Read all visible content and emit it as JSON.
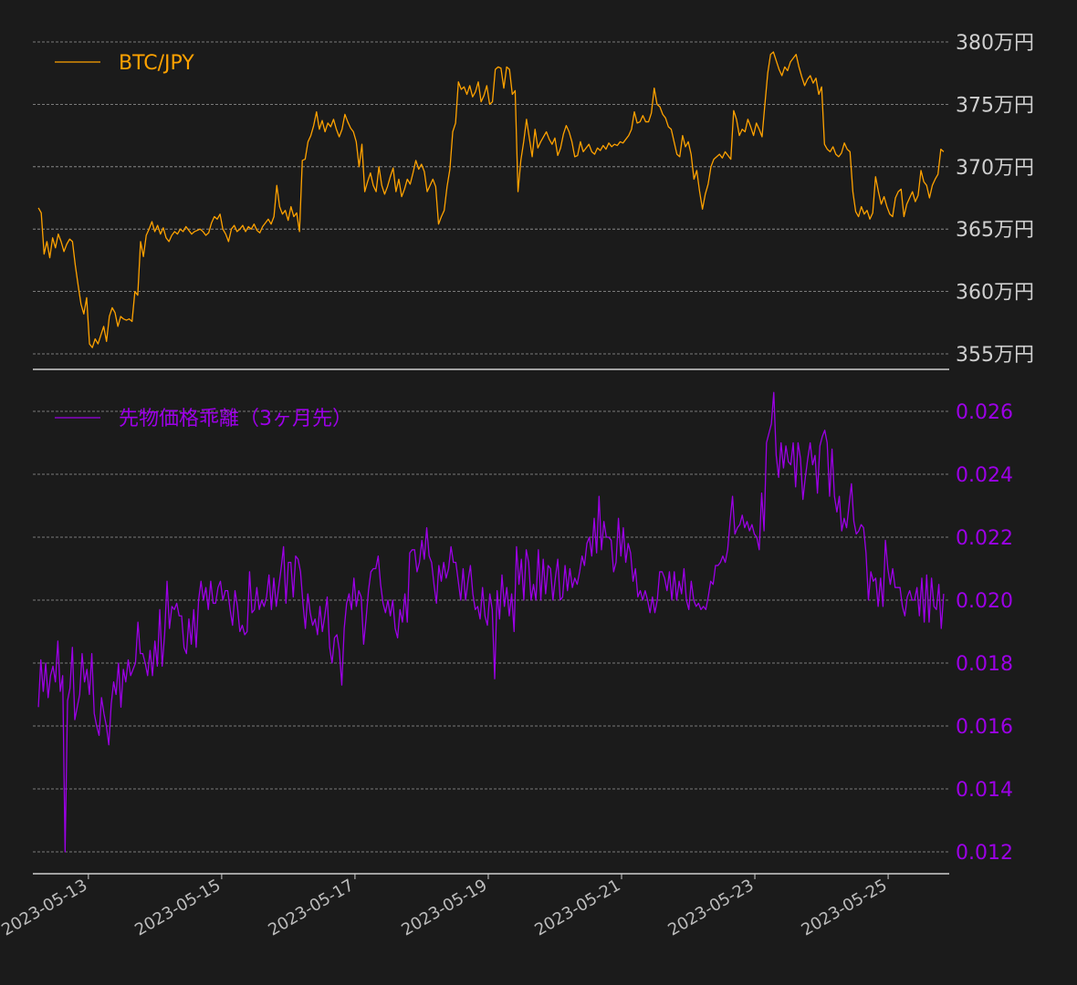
{
  "colors": {
    "background": "#1b1b1b",
    "grid": "#9a9a9a",
    "axis": "#cfcfcf",
    "btc": "#ffa200",
    "premium": "#9c00e6",
    "xtick": "#bdbdbd",
    "btc_ticks": "#cfcfcf"
  },
  "chart_data": [
    {
      "type": "line",
      "legend": "BTC/JPY",
      "legend_position": "top-left",
      "grid": true,
      "y_tick_suffix": "万円",
      "y_ticks": [
        355,
        360,
        365,
        370,
        375,
        380
      ],
      "y_tick_labels": [
        "355万円",
        "360万円",
        "365万円",
        "370万円",
        "375万円",
        "380万円"
      ],
      "ylim": [
        354.8,
        380.3
      ],
      "xlim": [
        "2023-05-12T04:00",
        "2023-05-25T22:00"
      ],
      "series": [
        {
          "name": "BTC/JPY",
          "x_start": "2023-05-12T06:00",
          "x_end": "2023-05-25T20:00",
          "values": [
            366.7,
            366.3,
            363.0,
            364.0,
            362.7,
            364.3,
            363.5,
            364.6,
            364.0,
            363.2,
            363.8,
            364.2,
            364.0,
            362.1,
            360.5,
            359.0,
            358.2,
            359.5,
            355.8,
            355.5,
            356.2,
            355.8,
            356.5,
            357.2,
            356.0,
            358.0,
            358.7,
            358.3,
            357.2,
            358.0,
            357.8,
            357.7,
            357.8,
            357.6,
            360.0,
            359.7,
            364.0,
            362.8,
            364.5,
            365.0,
            365.6,
            364.8,
            365.3,
            364.6,
            365.1,
            364.3,
            364.0,
            364.5,
            364.8,
            364.6,
            365.0,
            364.8,
            365.2,
            364.9,
            364.6,
            364.8,
            364.9,
            365.0,
            364.8,
            364.5,
            364.7,
            365.5,
            366.0,
            365.8,
            366.2,
            365.0,
            364.6,
            364.0,
            365.0,
            365.3,
            364.8,
            365.0,
            365.3,
            364.8,
            365.2,
            365.0,
            365.4,
            364.9,
            364.7,
            365.2,
            365.5,
            365.8,
            365.4,
            366.0,
            368.5,
            366.8,
            366.2,
            366.5,
            365.7,
            366.8,
            366.0,
            366.3,
            364.8,
            370.5,
            370.6,
            372.0,
            372.5,
            373.3,
            374.4,
            373.0,
            373.7,
            372.8,
            373.5,
            373.2,
            373.8,
            373.0,
            372.4,
            373.0,
            374.2,
            373.6,
            373.1,
            372.8,
            372.0,
            370.0,
            371.8,
            368.0,
            368.8,
            369.5,
            368.5,
            368.0,
            370.0,
            368.5,
            367.8,
            368.4,
            369.2,
            369.9,
            368.0,
            369.0,
            367.6,
            368.2,
            369.0,
            368.6,
            369.5,
            370.5,
            369.8,
            370.2,
            369.6,
            368.0,
            368.5,
            369.0,
            368.4,
            365.4,
            366.0,
            366.5,
            368.4,
            369.8,
            372.8,
            373.5,
            376.8,
            376.2,
            376.4,
            375.8,
            376.5,
            375.6,
            376.0,
            376.8,
            375.2,
            375.7,
            376.5,
            375.0,
            375.2,
            377.8,
            378.0,
            377.9,
            376.3,
            378.0,
            377.8,
            375.8,
            376.1,
            368.0,
            370.5,
            372.0,
            373.8,
            372.3,
            370.8,
            373.0,
            371.5,
            372.0,
            372.4,
            372.8,
            372.2,
            371.8,
            372.3,
            370.9,
            371.5,
            372.6,
            373.3,
            372.8,
            372.0,
            370.8,
            370.9,
            372.0,
            371.2,
            371.5,
            371.8,
            371.2,
            371.0,
            371.5,
            371.3,
            371.7,
            371.4,
            371.9,
            371.6,
            371.8,
            371.7,
            372.0,
            371.9,
            372.2,
            372.5,
            373.0,
            374.4,
            373.5,
            373.6,
            374.1,
            373.6,
            373.6,
            374.3,
            376.3,
            375.0,
            374.8,
            374.2,
            373.9,
            373.2,
            373.0,
            372.0,
            371.0,
            370.8,
            372.5,
            371.6,
            372.0,
            371.0,
            369.0,
            369.7,
            368.0,
            366.6,
            367.8,
            368.6,
            370.0,
            370.6,
            370.8,
            371.0,
            370.7,
            371.2,
            370.9,
            370.6,
            374.5,
            373.8,
            372.5,
            373.0,
            372.8,
            373.8,
            373.2,
            372.5,
            373.5,
            373.0,
            372.4,
            375.0,
            377.5,
            379.0,
            379.2,
            378.5,
            377.8,
            377.3,
            378.0,
            377.7,
            378.4,
            378.7,
            379.0,
            378.0,
            377.2,
            376.5,
            377.0,
            377.3,
            376.7,
            377.1,
            375.8,
            376.4,
            371.8,
            371.4,
            371.2,
            371.6,
            371.0,
            370.8,
            371.1,
            371.9,
            371.4,
            371.2,
            368.0,
            366.4,
            366.0,
            366.8,
            366.2,
            366.5,
            365.8,
            366.3,
            369.2,
            368.0,
            367.0,
            367.6,
            366.8,
            366.2,
            366.0,
            367.5,
            368.0,
            368.2,
            366.0,
            367.0,
            367.5,
            368.0,
            367.2,
            367.7,
            369.7,
            368.8,
            368.5,
            367.5,
            368.5,
            369.0,
            369.4,
            371.4,
            371.2
          ]
        }
      ]
    },
    {
      "type": "line",
      "legend": "先物価格乖離（3ヶ月先）",
      "legend_position": "top-left",
      "grid": true,
      "y_ticks": [
        0.012,
        0.014,
        0.016,
        0.018,
        0.02,
        0.022,
        0.024,
        0.026
      ],
      "y_tick_labels": [
        "0.012",
        "0.014",
        "0.016",
        "0.018",
        "0.020",
        "0.022",
        "0.024",
        "0.026"
      ],
      "ylim": [
        0.0115,
        0.0267
      ],
      "xlim": [
        "2023-05-12T04:00",
        "2023-05-25T22:00"
      ],
      "x_tick_labels": [
        "2023-05-13",
        "2023-05-15",
        "2023-05-17",
        "2023-05-19",
        "2023-05-21",
        "2023-05-23",
        "2023-05-25"
      ],
      "x_ticks": [
        "2023-05-13",
        "2023-05-15",
        "2023-05-17",
        "2023-05-19",
        "2023-05-21",
        "2023-05-23",
        "2023-05-25"
      ],
      "series": [
        {
          "name": "先物価格乖離（3ヶ月先）",
          "x_start": "2023-05-12T06:00",
          "x_end": "2023-05-25T20:00",
          "values": [
            0.0166,
            0.0181,
            0.0171,
            0.018,
            0.0169,
            0.0176,
            0.0179,
            0.0174,
            0.0187,
            0.0171,
            0.0176,
            0.012,
            0.0168,
            0.0172,
            0.0185,
            0.0162,
            0.0166,
            0.017,
            0.0183,
            0.0174,
            0.0178,
            0.017,
            0.0183,
            0.0164,
            0.016,
            0.0157,
            0.0169,
            0.0164,
            0.016,
            0.0154,
            0.0167,
            0.0174,
            0.017,
            0.018,
            0.0166,
            0.0178,
            0.0174,
            0.0181,
            0.0176,
            0.0178,
            0.018,
            0.0193,
            0.0183,
            0.0183,
            0.018,
            0.0176,
            0.0184,
            0.0176,
            0.0187,
            0.0179,
            0.0197,
            0.0179,
            0.0189,
            0.0206,
            0.0191,
            0.0198,
            0.0197,
            0.0199,
            0.0195,
            0.0195,
            0.0185,
            0.0183,
            0.0194,
            0.0186,
            0.0197,
            0.0185,
            0.02,
            0.0206,
            0.02,
            0.0204,
            0.0197,
            0.0206,
            0.0199,
            0.0199,
            0.0204,
            0.0206,
            0.02,
            0.0203,
            0.0203,
            0.0197,
            0.0192,
            0.0203,
            0.0198,
            0.019,
            0.0192,
            0.0189,
            0.019,
            0.0209,
            0.0196,
            0.0197,
            0.0204,
            0.0197,
            0.02,
            0.0198,
            0.0201,
            0.0208,
            0.0197,
            0.0207,
            0.0198,
            0.0204,
            0.021,
            0.0217,
            0.0199,
            0.0212,
            0.0212,
            0.0201,
            0.0214,
            0.0213,
            0.0209,
            0.0199,
            0.0191,
            0.0202,
            0.0196,
            0.0192,
            0.0194,
            0.0189,
            0.0198,
            0.019,
            0.0195,
            0.0201,
            0.0185,
            0.018,
            0.0188,
            0.0189,
            0.0184,
            0.0173,
            0.0191,
            0.0199,
            0.0202,
            0.0197,
            0.0207,
            0.0198,
            0.0203,
            0.0201,
            0.0186,
            0.0194,
            0.0203,
            0.0209,
            0.021,
            0.021,
            0.0214,
            0.0205,
            0.0199,
            0.0196,
            0.02,
            0.0195,
            0.02,
            0.0191,
            0.0188,
            0.0197,
            0.0193,
            0.0202,
            0.0193,
            0.0215,
            0.0216,
            0.0216,
            0.0209,
            0.0212,
            0.0219,
            0.0213,
            0.0223,
            0.0214,
            0.0212,
            0.0205,
            0.0199,
            0.0211,
            0.0206,
            0.0212,
            0.0207,
            0.021,
            0.0217,
            0.0212,
            0.0212,
            0.0206,
            0.02,
            0.021,
            0.02,
            0.0206,
            0.0211,
            0.0202,
            0.0197,
            0.0198,
            0.0194,
            0.0204,
            0.0195,
            0.0192,
            0.0202,
            0.0197,
            0.0175,
            0.0203,
            0.0194,
            0.0208,
            0.0198,
            0.0204,
            0.0195,
            0.0202,
            0.019,
            0.0217,
            0.0205,
            0.0213,
            0.02,
            0.0216,
            0.0212,
            0.02,
            0.0205,
            0.02,
            0.0216,
            0.02,
            0.0213,
            0.0202,
            0.0211,
            0.021,
            0.02,
            0.0207,
            0.0213,
            0.02,
            0.0201,
            0.0211,
            0.0203,
            0.021,
            0.0204,
            0.0207,
            0.0205,
            0.0209,
            0.0214,
            0.0211,
            0.0218,
            0.022,
            0.0214,
            0.0226,
            0.0215,
            0.0233,
            0.0216,
            0.0225,
            0.022,
            0.022,
            0.0219,
            0.0209,
            0.0212,
            0.0226,
            0.0214,
            0.0223,
            0.0212,
            0.0218,
            0.0215,
            0.0206,
            0.021,
            0.0201,
            0.0203,
            0.02,
            0.0203,
            0.02,
            0.0196,
            0.0201,
            0.0196,
            0.02,
            0.0209,
            0.0209,
            0.0207,
            0.0203,
            0.0209,
            0.02,
            0.0209,
            0.02,
            0.0206,
            0.0202,
            0.021,
            0.02,
            0.0197,
            0.0206,
            0.02,
            0.0198,
            0.0199,
            0.0197,
            0.0198,
            0.0197,
            0.0201,
            0.0206,
            0.0205,
            0.0211,
            0.0211,
            0.0212,
            0.0214,
            0.0212,
            0.0216,
            0.0225,
            0.0233,
            0.0221,
            0.0223,
            0.0224,
            0.0227,
            0.0223,
            0.0225,
            0.0222,
            0.0224,
            0.0221,
            0.022,
            0.0216,
            0.0234,
            0.0222,
            0.025,
            0.0253,
            0.0256,
            0.0266,
            0.0246,
            0.0239,
            0.025,
            0.0242,
            0.0249,
            0.0244,
            0.0243,
            0.025,
            0.0236,
            0.025,
            0.0245,
            0.0232,
            0.0239,
            0.0245,
            0.025,
            0.0243,
            0.0246,
            0.0234,
            0.0249,
            0.0252,
            0.0254,
            0.025,
            0.0233,
            0.0248,
            0.0233,
            0.0228,
            0.0233,
            0.0222,
            0.0226,
            0.0223,
            0.023,
            0.0237,
            0.0225,
            0.0221,
            0.0222,
            0.0224,
            0.0223,
            0.0215,
            0.02,
            0.0209,
            0.0206,
            0.0207,
            0.0198,
            0.0207,
            0.0198,
            0.0219,
            0.021,
            0.0205,
            0.021,
            0.0204,
            0.0204,
            0.0204,
            0.0198,
            0.0195,
            0.0201,
            0.0203,
            0.02,
            0.02,
            0.0204,
            0.0195,
            0.0207,
            0.0193,
            0.0208,
            0.0193,
            0.0207,
            0.0198,
            0.0197,
            0.0205,
            0.0191,
            0.0202
          ]
        }
      ]
    }
  ]
}
